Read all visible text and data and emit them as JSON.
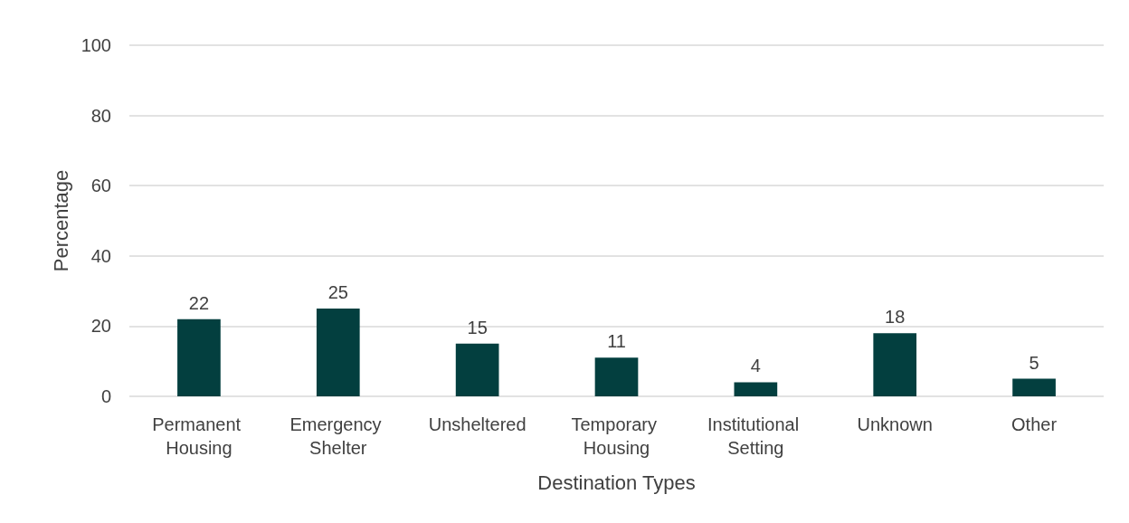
{
  "chart_data": {
    "type": "bar",
    "xlabel": "Destination Types",
    "ylabel": "Percentage",
    "categories": [
      "Permanent Housing",
      "Emergency Shelter",
      "Unsheltered",
      "Temporary Housing",
      "Institutional Setting",
      "Unknown",
      "Other"
    ],
    "values": [
      22,
      25,
      15,
      11,
      4,
      18,
      5
    ],
    "color": "#033f3f",
    "ylim": [
      0,
      100
    ],
    "yticks": [
      0,
      20,
      40,
      60,
      80,
      100
    ],
    "grid": "y",
    "data_labels": true
  }
}
